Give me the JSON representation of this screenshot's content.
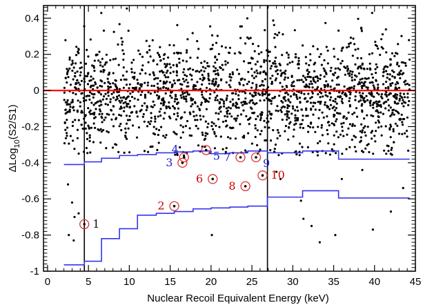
{
  "chart_data": {
    "type": "scatter",
    "xlabel": "Nuclear Recoil Equivalent Energy (keV)",
    "ylabel": "ΔLog",
    "ylabel_sub": "10",
    "ylabel_tail": "(S2/S1)",
    "xlim": [
      -0.5,
      45
    ],
    "ylim": [
      -1.0,
      0.47
    ],
    "x_ticks": [
      0,
      5,
      10,
      15,
      20,
      25,
      30,
      35,
      40,
      45
    ],
    "x_tick_labels": [
      "0",
      "5",
      "10",
      "15",
      "20",
      "25",
      "30",
      "35",
      "40",
      "45"
    ],
    "y_ticks": [
      -1,
      -0.8,
      -0.6,
      -0.4,
      -0.2,
      0,
      0.2,
      0.4
    ],
    "y_tick_labels": [
      "-1",
      "-0.8",
      "-0.6",
      "-0.4",
      "-0.2",
      "0",
      "0.2",
      "0.4"
    ],
    "grid": false,
    "reference_line": {
      "y": 0,
      "color": "#ff0000"
    },
    "vertical_lines": [
      {
        "x": 4.5
      },
      {
        "x": 26.9
      }
    ],
    "colors": {
      "points": "#000000",
      "acceptance": "#3333ee",
      "label_blue": "#1f1fc8",
      "label_red": "#cc0000",
      "marker_circle": "#e03030"
    },
    "acceptance_upper": {
      "segments": [
        {
          "x0": 2.0,
          "x1": 4.5,
          "y": -0.41
        },
        {
          "x0": 4.5,
          "x1": 6.6,
          "y": -0.395
        },
        {
          "x0": 6.6,
          "x1": 8.8,
          "y": -0.375
        },
        {
          "x0": 8.8,
          "x1": 11.0,
          "y": -0.36
        },
        {
          "x0": 11.0,
          "x1": 13.3,
          "y": -0.355
        },
        {
          "x0": 13.3,
          "x1": 15.5,
          "y": -0.345
        },
        {
          "x0": 15.5,
          "x1": 17.8,
          "y": -0.34
        },
        {
          "x0": 17.8,
          "x1": 20.0,
          "y": -0.335
        },
        {
          "x0": 20.0,
          "x1": 22.3,
          "y": -0.35
        },
        {
          "x0": 22.3,
          "x1": 24.5,
          "y": -0.345
        },
        {
          "x0": 24.5,
          "x1": 26.9,
          "y": -0.335
        },
        {
          "x0": 26.9,
          "x1": 31.2,
          "y": -0.345
        },
        {
          "x0": 31.2,
          "x1": 35.6,
          "y": -0.335
        },
        {
          "x0": 35.6,
          "x1": 40.0,
          "y": -0.38
        },
        {
          "x0": 40.0,
          "x1": 44.3,
          "y": -0.38
        }
      ]
    },
    "acceptance_lower": {
      "segments": [
        {
          "x0": 2.0,
          "x1": 4.5,
          "y": -0.965
        },
        {
          "x0": 4.5,
          "x1": 6.6,
          "y": -0.945
        },
        {
          "x0": 6.6,
          "x1": 8.8,
          "y": -0.82
        },
        {
          "x0": 8.8,
          "x1": 11.0,
          "y": -0.765
        },
        {
          "x0": 11.0,
          "x1": 13.3,
          "y": -0.69
        },
        {
          "x0": 13.3,
          "x1": 15.5,
          "y": -0.68
        },
        {
          "x0": 15.5,
          "x1": 17.8,
          "y": -0.67
        },
        {
          "x0": 17.8,
          "x1": 20.0,
          "y": -0.655
        },
        {
          "x0": 20.0,
          "x1": 22.3,
          "y": -0.65
        },
        {
          "x0": 22.3,
          "x1": 24.5,
          "y": -0.645
        },
        {
          "x0": 24.5,
          "x1": 26.9,
          "y": -0.64
        },
        {
          "x0": 26.9,
          "x1": 31.2,
          "y": -0.59
        },
        {
          "x0": 31.2,
          "x1": 35.6,
          "y": -0.555
        },
        {
          "x0": 35.6,
          "x1": 40.0,
          "y": -0.595
        },
        {
          "x0": 40.0,
          "x1": 44.3,
          "y": -0.595
        }
      ]
    },
    "background_points": {
      "count": 1900,
      "x_range": [
        2.0,
        44.3
      ],
      "center": -0.02,
      "spread": 0.15
    },
    "below_band_points": [
      {
        "x": 2.5,
        "y": -0.52
      },
      {
        "x": 3.0,
        "y": -0.62
      },
      {
        "x": 3.3,
        "y": -0.7
      },
      {
        "x": 2.6,
        "y": -0.8
      },
      {
        "x": 3.2,
        "y": -0.83
      },
      {
        "x": 3.8,
        "y": -0.68
      },
      {
        "x": 20.1,
        "y": -0.8
      },
      {
        "x": 31.3,
        "y": -0.71
      },
      {
        "x": 32.3,
        "y": -0.75
      },
      {
        "x": 35.2,
        "y": -0.8
      },
      {
        "x": 31.0,
        "y": -0.61
      },
      {
        "x": 39.8,
        "y": -0.77
      },
      {
        "x": 42.0,
        "y": -0.67
      },
      {
        "x": 28.5,
        "y": -0.49
      },
      {
        "x": 36.0,
        "y": -0.49
      },
      {
        "x": 43.5,
        "y": -0.54
      },
      {
        "x": 38.5,
        "y": -0.44
      },
      {
        "x": 33.3,
        "y": -0.84
      },
      {
        "x": 28.0,
        "y": -0.45
      }
    ],
    "events": [
      {
        "id": "1",
        "x": 4.5,
        "y": -0.74,
        "label_color": "blue_black",
        "label_side": "right"
      },
      {
        "id": "2",
        "x": 15.5,
        "y": -0.64,
        "label_color": "red",
        "label_side": "left"
      },
      {
        "id": "3",
        "x": 16.5,
        "y": -0.4,
        "label_color": "blue",
        "label_side": "left"
      },
      {
        "id": "4",
        "x": 16.7,
        "y": -0.37,
        "label_color": "blue",
        "label_side": "upleft"
      },
      {
        "id": "5",
        "x": 19.4,
        "y": -0.33,
        "label_color": "blue",
        "label_side": "downright"
      },
      {
        "id": "6",
        "x": 20.2,
        "y": -0.49,
        "label_color": "red",
        "label_side": "left"
      },
      {
        "id": "7",
        "x": 23.6,
        "y": -0.37,
        "label_color": "blue",
        "label_side": "left"
      },
      {
        "id": "8",
        "x": 24.2,
        "y": -0.53,
        "label_color": "red",
        "label_side": "left"
      },
      {
        "id": "9",
        "x": 25.5,
        "y": -0.37,
        "label_color": "blue",
        "label_side": "downright"
      },
      {
        "id": "10",
        "x": 26.3,
        "y": -0.47,
        "label_color": "red",
        "label_side": "right"
      }
    ]
  }
}
